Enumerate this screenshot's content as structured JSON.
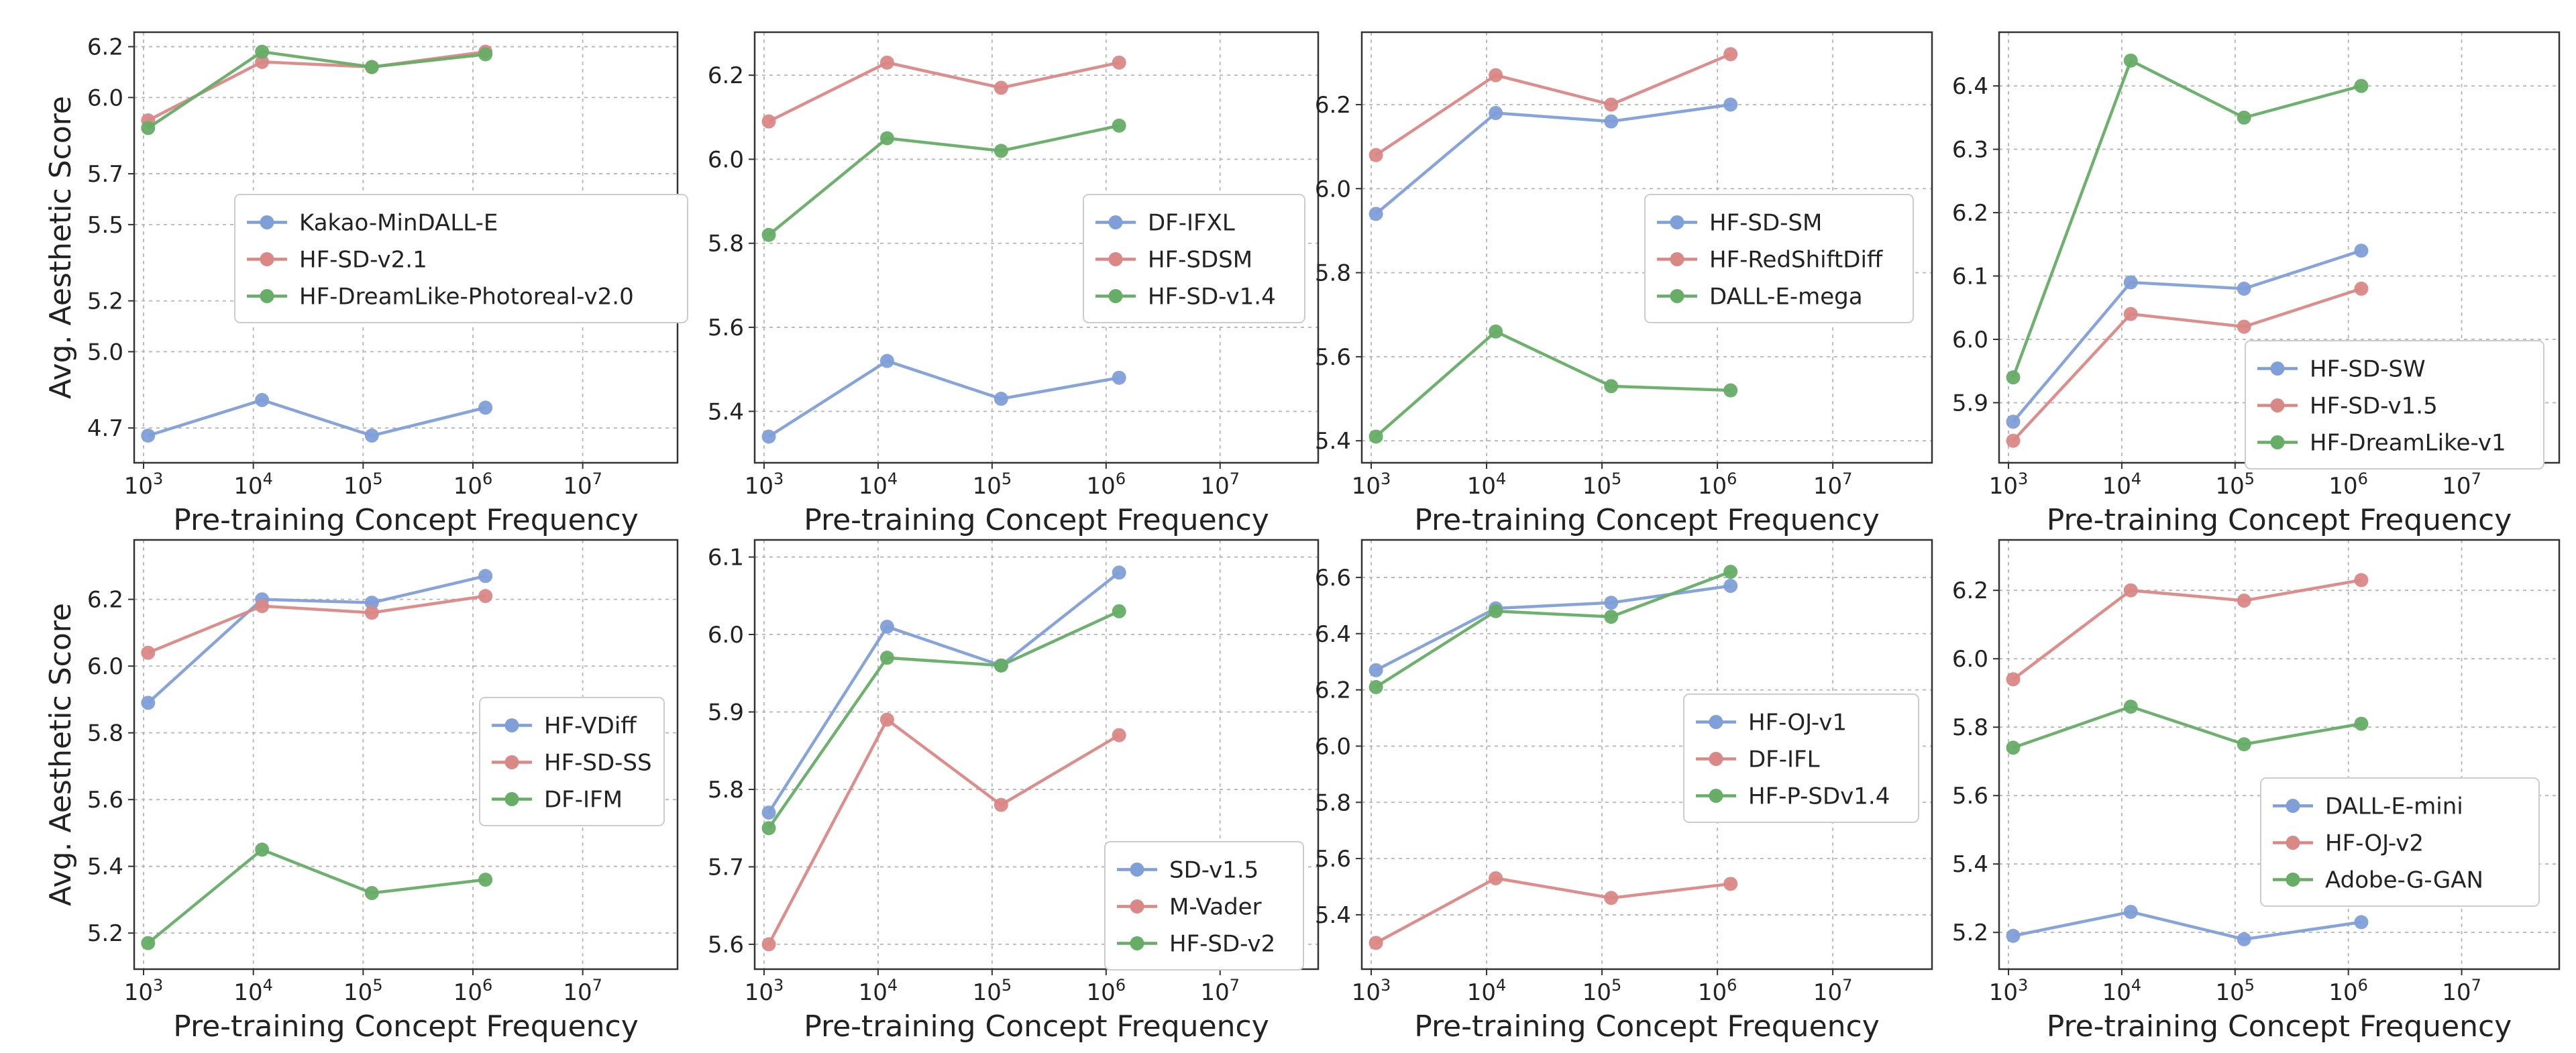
{
  "colors": {
    "blue": "#7f9fd8",
    "red": "#d98885",
    "green": "#66ad66"
  },
  "chart_data": [
    {
      "type": "line",
      "xlabel": "Pre-training Concept Frequency",
      "ylabel": "Avg. Aesthetic Score",
      "x_scale": "log",
      "xlim": [
        1000,
        60000000
      ],
      "ylim": [
        4.6,
        6.22
      ],
      "yticks": [
        4.7,
        5.0,
        5.2,
        5.5,
        5.7,
        6.0,
        6.2
      ],
      "ytick_labels": [
        "4.7",
        "5.0",
        "5.2",
        "5.5",
        "5.7",
        "6.0",
        "6.2"
      ],
      "x": [
        1100,
        12000,
        120000,
        1300000
      ],
      "grid": true,
      "legend": "center",
      "series": [
        {
          "name": "Kakao-MinDALL-E",
          "color": "#7f9fd8",
          "values": [
            4.67,
            4.81,
            4.67,
            4.78
          ]
        },
        {
          "name": "HF-SD-v2.1",
          "color": "#d98885",
          "values": [
            5.91,
            6.14,
            6.12,
            6.18
          ]
        },
        {
          "name": "HF-DreamLike-Photoreal-v2.0",
          "color": "#66ad66",
          "values": [
            5.88,
            6.18,
            6.12,
            6.17
          ]
        }
      ]
    },
    {
      "type": "line",
      "xlabel": "Pre-training Concept Frequency",
      "ylabel": "",
      "x_scale": "log",
      "xlim": [
        1000,
        60000000
      ],
      "ylim": [
        5.3,
        6.28
      ],
      "yticks": [
        5.4,
        5.6,
        5.8,
        6.0,
        6.2
      ],
      "ytick_labels": [
        "5.4",
        "5.6",
        "5.8",
        "6.0",
        "6.2"
      ],
      "x": [
        1100,
        12000,
        120000,
        1300000
      ],
      "grid": true,
      "legend": "center-right",
      "series": [
        {
          "name": "DF-IFXL",
          "color": "#7f9fd8",
          "values": [
            5.34,
            5.52,
            5.43,
            5.48
          ]
        },
        {
          "name": "HF-SDSM",
          "color": "#d98885",
          "values": [
            6.09,
            6.23,
            6.17,
            6.23
          ]
        },
        {
          "name": "HF-SD-v1.4",
          "color": "#66ad66",
          "values": [
            5.82,
            6.05,
            6.02,
            6.08
          ]
        }
      ]
    },
    {
      "type": "line",
      "xlabel": "Pre-training Concept Frequency",
      "ylabel": "",
      "x_scale": "log",
      "xlim": [
        1000,
        60000000
      ],
      "ylim": [
        5.37,
        6.35
      ],
      "yticks": [
        5.4,
        5.6,
        5.8,
        6.0,
        6.2
      ],
      "ytick_labels": [
        "5.4",
        "5.6",
        "5.8",
        "6.0",
        "6.2"
      ],
      "x": [
        1100,
        12000,
        120000,
        1300000
      ],
      "grid": true,
      "legend": "center-right",
      "series": [
        {
          "name": "HF-SD-SM",
          "color": "#7f9fd8",
          "values": [
            5.94,
            6.18,
            6.16,
            6.2
          ]
        },
        {
          "name": "HF-RedShiftDiff",
          "color": "#d98885",
          "values": [
            6.08,
            6.27,
            6.2,
            6.32
          ]
        },
        {
          "name": "DALL-E-mega",
          "color": "#66ad66",
          "values": [
            5.41,
            5.66,
            5.53,
            5.52
          ]
        }
      ]
    },
    {
      "type": "line",
      "xlabel": "Pre-training Concept Frequency",
      "ylabel": "",
      "x_scale": "log",
      "xlim": [
        1000,
        60000000
      ],
      "ylim": [
        5.82,
        6.47
      ],
      "yticks": [
        5.9,
        6.0,
        6.1,
        6.2,
        6.3,
        6.4
      ],
      "ytick_labels": [
        "5.9",
        "6.0",
        "6.1",
        "6.2",
        "6.3",
        "6.4"
      ],
      "x": [
        1100,
        12000,
        120000,
        1300000
      ],
      "grid": true,
      "legend": "lower-right",
      "series": [
        {
          "name": "HF-SD-SW",
          "color": "#7f9fd8",
          "values": [
            5.87,
            6.09,
            6.08,
            6.14
          ]
        },
        {
          "name": "HF-SD-v1.5",
          "color": "#d98885",
          "values": [
            5.84,
            6.04,
            6.02,
            6.08
          ]
        },
        {
          "name": "HF-DreamLike-v1",
          "color": "#66ad66",
          "values": [
            5.94,
            6.44,
            6.35,
            6.4
          ]
        }
      ]
    },
    {
      "type": "line",
      "xlabel": "Pre-training Concept Frequency",
      "ylabel": "Avg. Aesthetic Score",
      "x_scale": "log",
      "xlim": [
        1000,
        60000000
      ],
      "ylim": [
        5.12,
        6.35
      ],
      "yticks": [
        5.2,
        5.4,
        5.6,
        5.8,
        6.0,
        6.2
      ],
      "ytick_labels": [
        "5.2",
        "5.4",
        "5.6",
        "5.8",
        "6.0",
        "6.2"
      ],
      "x": [
        1100,
        12000,
        120000,
        1300000
      ],
      "grid": true,
      "legend": "center-right",
      "series": [
        {
          "name": "HF-VDiff",
          "color": "#7f9fd8",
          "values": [
            5.89,
            6.2,
            6.19,
            6.27
          ]
        },
        {
          "name": "HF-SD-SS",
          "color": "#d98885",
          "values": [
            6.04,
            6.18,
            6.16,
            6.21
          ]
        },
        {
          "name": "DF-IFM",
          "color": "#66ad66",
          "values": [
            5.17,
            5.45,
            5.32,
            5.36
          ]
        }
      ]
    },
    {
      "type": "line",
      "xlabel": "Pre-training Concept Frequency",
      "ylabel": "",
      "x_scale": "log",
      "xlim": [
        1000,
        60000000
      ],
      "ylim": [
        5.58,
        6.11
      ],
      "yticks": [
        5.6,
        5.7,
        5.8,
        5.9,
        6.0,
        6.1
      ],
      "ytick_labels": [
        "5.6",
        "5.7",
        "5.8",
        "5.9",
        "6.0",
        "6.1"
      ],
      "x": [
        1100,
        12000,
        120000,
        1300000
      ],
      "grid": true,
      "legend": "lower-right",
      "series": [
        {
          "name": "SD-v1.5",
          "color": "#7f9fd8",
          "values": [
            5.77,
            6.01,
            5.96,
            6.08
          ]
        },
        {
          "name": "M-Vader",
          "color": "#d98885",
          "values": [
            5.6,
            5.89,
            5.78,
            5.87
          ]
        },
        {
          "name": "HF-SD-v2",
          "color": "#66ad66",
          "values": [
            5.75,
            5.97,
            5.96,
            6.03
          ]
        }
      ]
    },
    {
      "type": "line",
      "xlabel": "Pre-training Concept Frequency",
      "ylabel": "",
      "x_scale": "log",
      "xlim": [
        1000,
        60000000
      ],
      "ylim": [
        5.24,
        6.7
      ],
      "yticks": [
        5.4,
        5.6,
        5.8,
        6.0,
        6.2,
        6.4,
        6.6
      ],
      "ytick_labels": [
        "5.4",
        "5.6",
        "5.8",
        "6.0",
        "6.2",
        "6.4",
        "6.6"
      ],
      "x": [
        1100,
        12000,
        120000,
        1300000
      ],
      "grid": true,
      "legend": "center-right",
      "series": [
        {
          "name": "HF-OJ-v1",
          "color": "#7f9fd8",
          "values": [
            6.27,
            6.49,
            6.51,
            6.57
          ]
        },
        {
          "name": "DF-IFL",
          "color": "#d98885",
          "values": [
            5.3,
            5.53,
            5.46,
            5.51
          ]
        },
        {
          "name": "HF-P-SDv1.4",
          "color": "#66ad66",
          "values": [
            6.21,
            6.48,
            6.46,
            6.62
          ]
        }
      ]
    },
    {
      "type": "line",
      "xlabel": "Pre-training Concept Frequency",
      "ylabel": "",
      "x_scale": "log",
      "xlim": [
        1000,
        60000000
      ],
      "ylim": [
        5.12,
        6.32
      ],
      "yticks": [
        5.2,
        5.4,
        5.6,
        5.8,
        6.0,
        6.2
      ],
      "ytick_labels": [
        "5.2",
        "5.4",
        "5.6",
        "5.8",
        "6.0",
        "6.2"
      ],
      "x": [
        1100,
        12000,
        120000,
        1300000
      ],
      "grid": true,
      "legend": "lower-right",
      "series": [
        {
          "name": "DALL-E-mini",
          "color": "#7f9fd8",
          "values": [
            5.19,
            5.26,
            5.18,
            5.23
          ]
        },
        {
          "name": "HF-OJ-v2",
          "color": "#d98885",
          "values": [
            5.94,
            6.2,
            6.17,
            6.23
          ]
        },
        {
          "name": "Adobe-G-GAN",
          "color": "#66ad66",
          "values": [
            5.74,
            5.86,
            5.75,
            5.81
          ]
        }
      ]
    }
  ]
}
